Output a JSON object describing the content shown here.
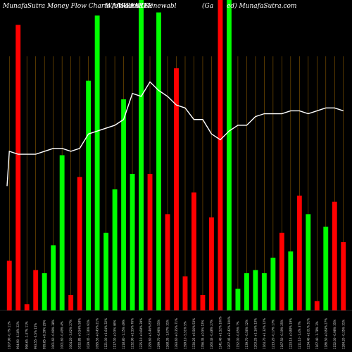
{
  "header": {
    "left_text": "MunafaSutra  Money Flow  Charts for WAAREE",
    "ticker_text": "WAAREERTL",
    "ticker_overlay": "(Waaree Renewabl",
    "center_text": "(Ga",
    "center_overlay": "ed) MunafaSutra.com"
  },
  "colors": {
    "background": "#000000",
    "up": "#00ff00",
    "down": "#ff0000",
    "line": "#ffffff",
    "grid": "#8b5a00"
  },
  "chart_data": {
    "type": "bar",
    "title": "",
    "xlabel": "",
    "ylabel": "",
    "bar_ylim": [
      0,
      100
    ],
    "line_ylim": [
      0,
      100
    ],
    "categories": [
      "1107.90 -0.7% 11%",
      "994.90 -0.18% 22%",
      "996.65 -1.47% 11%",
      "993.55 -0.5% 15%",
      "999.85 +0.39% 29%",
      "1001.60 -0.99% 38%",
      "1001.60 -0.49% 4%",
      "1004.20 -3.02% 27%",
      "1032.85 +0.54% 58%",
      "1029.45 -3.16% 91%",
      "1095.55 +0.45% 21%",
      "1121.00 +1.64% 32%",
      "1117.00 +0.5% 46%",
      "1218.80 -1.15% 49%",
      "1232.90 +2.55% 76%",
      "1225.10 +0.68% 39%",
      "1295.60 +3.46% 83%",
      "1299.70 -6.96% 55%",
      "1268.35 -1.07% 31%",
      "1393.60 +0.35% 71%",
      "1399.10 -5.51% 5%",
      "1330.25 +6.56% 53%",
      "1356.35 +0.5% 13%",
      "1260.43 -0.48% 27%",
      "1241.40 +1.52% 100%",
      "1207.45 +2.42% 100%",
      "1152.00 -0.05% 7%",
      "1139.70 -0.56% 12%",
      "1203.25 +1.16% 13%",
      "1164.70 +1.32% 12%",
      "1213.20 -0.17% 17%",
      "1167.50 -0.19% 25%",
      "1223.15 +0.88% 19%",
      "1211.10 -1.4% 37%",
      "1234.40 +2.01% 31%",
      "1167.40 -1.78% 3%",
      "1186.50 +0.84% 27%",
      "1152.00 -0.98% 35%",
      "1284.20 -0.35% 31%"
    ],
    "series": [
      {
        "kind": "money_flow_bars",
        "values": [
          16,
          92,
          2,
          13,
          12,
          21,
          50,
          5,
          43,
          74,
          95,
          25,
          39,
          68,
          44,
          100,
          44,
          96,
          31,
          78,
          11,
          38,
          5,
          30,
          100,
          100,
          7,
          12,
          13,
          12,
          17,
          25,
          19,
          37,
          31,
          3,
          27,
          35,
          22
        ],
        "colors": [
          "red",
          "red",
          "red",
          "red",
          "green",
          "green",
          "green",
          "red",
          "red",
          "green",
          "green",
          "green",
          "green",
          "green",
          "green",
          "green",
          "red",
          "green",
          "red",
          "red",
          "red",
          "red",
          "red",
          "red",
          "red",
          "green",
          "green",
          "green",
          "green",
          "green",
          "green",
          "red",
          "green",
          "red",
          "green",
          "red",
          "green",
          "red",
          "red"
        ]
      },
      {
        "kind": "price_line",
        "values": [
          55,
          54,
          54,
          54,
          55,
          56,
          56,
          55,
          56,
          61,
          62,
          63,
          64,
          66,
          75,
          74,
          79,
          76,
          74,
          71,
          70,
          66,
          66,
          61,
          59,
          62,
          64,
          64,
          67,
          68,
          68,
          68,
          69,
          69,
          68,
          69,
          70,
          70,
          69
        ]
      }
    ]
  }
}
